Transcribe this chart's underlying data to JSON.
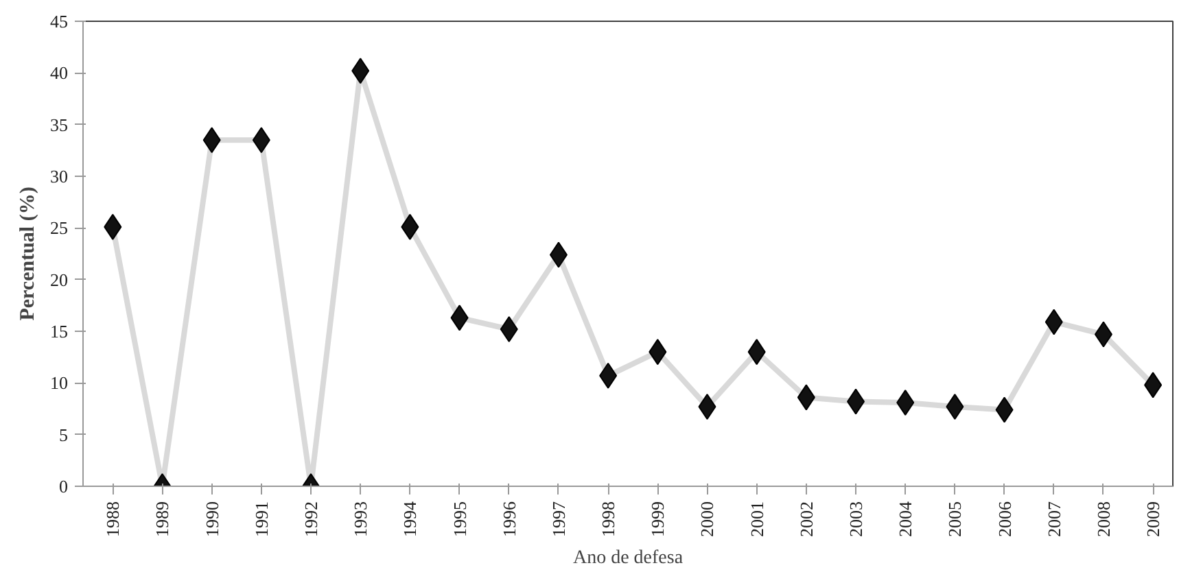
{
  "chart_data": {
    "type": "line",
    "xlabel": "Ano de defesa",
    "ylabel": "Percentual (%)",
    "categories": [
      "1988",
      "1989",
      "1990",
      "1991",
      "1992",
      "1993",
      "1994",
      "1995",
      "1996",
      "1997",
      "1998",
      "1999",
      "2000",
      "2001",
      "2002",
      "2003",
      "2004",
      "2005",
      "2006",
      "2007",
      "2008",
      "2009"
    ],
    "series": [
      {
        "color": "#d9d9d9",
        "values": [
          25.1,
          0,
          33.5,
          33.5,
          0,
          40.2,
          25.1,
          16.3,
          15.2,
          22.4,
          10.7,
          13.0,
          7.7,
          13.0,
          8.6,
          8.2,
          8.1,
          7.7,
          7.4,
          15.9,
          14.7,
          9.8
        ]
      }
    ],
    "ylim": [
      0,
      45
    ],
    "yticks": [
      0,
      5,
      10,
      15,
      20,
      25,
      30,
      35,
      40,
      45
    ],
    "grid": false,
    "marker": "diamond",
    "line_style": "solid"
  }
}
